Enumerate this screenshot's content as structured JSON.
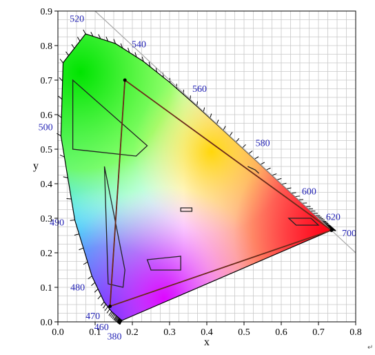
{
  "chart_data": {
    "type": "chromaticity-diagram",
    "xlabel": "x",
    "ylabel": "y",
    "xlim": [
      0.0,
      0.8
    ],
    "ylim": [
      0.0,
      0.9
    ],
    "grid": true,
    "x_ticks": [
      {
        "value": 0.0,
        "label": "0.0"
      },
      {
        "value": 0.1,
        "label": "0.1"
      },
      {
        "value": 0.2,
        "label": "0.2"
      },
      {
        "value": 0.3,
        "label": "0.3"
      },
      {
        "value": 0.4,
        "label": "0.4"
      },
      {
        "value": 0.5,
        "label": "0.5"
      },
      {
        "value": 0.6,
        "label": "0.6"
      },
      {
        "value": 0.7,
        "label": "0.7"
      },
      {
        "value": 0.8,
        "label": "0.8"
      }
    ],
    "y_ticks": [
      {
        "value": 0.0,
        "label": "0.0"
      },
      {
        "value": 0.1,
        "label": "0.1"
      },
      {
        "value": 0.2,
        "label": "0.2"
      },
      {
        "value": 0.3,
        "label": "0.3"
      },
      {
        "value": 0.4,
        "label": "0.4"
      },
      {
        "value": 0.5,
        "label": "0.5"
      },
      {
        "value": 0.6,
        "label": "0.6"
      },
      {
        "value": 0.7,
        "label": "0.7"
      },
      {
        "value": 0.8,
        "label": "0.8"
      },
      {
        "value": 0.9,
        "label": "0.9"
      }
    ],
    "spectral_locus": [
      [
        0.1741,
        0.005
      ],
      [
        0.174,
        0.005
      ],
      [
        0.1738,
        0.0049
      ],
      [
        0.1733,
        0.0048
      ],
      [
        0.1726,
        0.0048
      ],
      [
        0.1714,
        0.0051
      ],
      [
        0.1689,
        0.0069
      ],
      [
        0.1644,
        0.0109
      ],
      [
        0.1566,
        0.0177
      ],
      [
        0.144,
        0.0297
      ],
      [
        0.1241,
        0.0578
      ],
      [
        0.0913,
        0.1327
      ],
      [
        0.0454,
        0.295
      ],
      [
        0.0082,
        0.5384
      ],
      [
        0.0139,
        0.7502
      ],
      [
        0.0743,
        0.8338
      ],
      [
        0.1547,
        0.8059
      ],
      [
        0.2296,
        0.7543
      ],
      [
        0.3016,
        0.6923
      ],
      [
        0.3731,
        0.6245
      ],
      [
        0.4441,
        0.5547
      ],
      [
        0.5125,
        0.4866
      ],
      [
        0.5752,
        0.4242
      ],
      [
        0.627,
        0.3725
      ],
      [
        0.6658,
        0.334
      ],
      [
        0.6915,
        0.3083
      ],
      [
        0.7079,
        0.292
      ],
      [
        0.719,
        0.2809
      ],
      [
        0.726,
        0.274
      ],
      [
        0.73,
        0.27
      ],
      [
        0.732,
        0.268
      ],
      [
        0.7334,
        0.2666
      ],
      [
        0.7347,
        0.2653
      ]
    ],
    "wavelength_labels": [
      {
        "label": "380",
        "x": 0.1741,
        "y": 0.005
      },
      {
        "label": "460",
        "x": 0.144,
        "y": 0.0297
      },
      {
        "label": "470",
        "x": 0.1241,
        "y": 0.0578
      },
      {
        "label": "480",
        "x": 0.0913,
        "y": 0.1327
      },
      {
        "label": "490",
        "x": 0.0454,
        "y": 0.295
      },
      {
        "label": "500",
        "x": 0.0082,
        "y": 0.5384
      },
      {
        "label": "520",
        "x": 0.0743,
        "y": 0.8338
      },
      {
        "label": "540",
        "x": 0.2296,
        "y": 0.7543
      },
      {
        "label": "560",
        "x": 0.3731,
        "y": 0.6245
      },
      {
        "label": "580",
        "x": 0.5125,
        "y": 0.4866
      },
      {
        "label": "600",
        "x": 0.627,
        "y": 0.3725
      },
      {
        "label": "620",
        "x": 0.6915,
        "y": 0.3083
      },
      {
        "label": "700",
        "x": 0.7347,
        "y": 0.2653
      }
    ],
    "reference_line": [
      [
        0.1,
        0.9
      ],
      [
        0.8,
        0.2
      ]
    ],
    "gamut_triangle": [
      [
        0.18,
        0.7
      ],
      [
        0.735,
        0.265
      ],
      [
        0.14,
        0.045
      ]
    ],
    "inner_line": [
      [
        0.18,
        0.7
      ],
      [
        0.14,
        0.045
      ]
    ],
    "outlined_regions": [
      [
        [
          0.04,
          0.7
        ],
        [
          0.04,
          0.5
        ],
        [
          0.21,
          0.48
        ],
        [
          0.24,
          0.51
        ]
      ],
      [
        [
          0.125,
          0.45
        ],
        [
          0.135,
          0.11
        ],
        [
          0.175,
          0.1
        ],
        [
          0.18,
          0.15
        ]
      ],
      [
        [
          0.62,
          0.3
        ],
        [
          0.68,
          0.3
        ],
        [
          0.7,
          0.28
        ],
        [
          0.64,
          0.28
        ]
      ],
      [
        [
          0.51,
          0.45
        ],
        [
          0.53,
          0.44
        ],
        [
          0.54,
          0.43
        ],
        [
          0.53,
          0.44
        ]
      ],
      [
        [
          0.33,
          0.32
        ],
        [
          0.36,
          0.32
        ],
        [
          0.36,
          0.33
        ],
        [
          0.33,
          0.33
        ]
      ],
      [
        [
          0.24,
          0.18
        ],
        [
          0.33,
          0.19
        ],
        [
          0.33,
          0.15
        ],
        [
          0.25,
          0.15
        ]
      ]
    ]
  }
}
